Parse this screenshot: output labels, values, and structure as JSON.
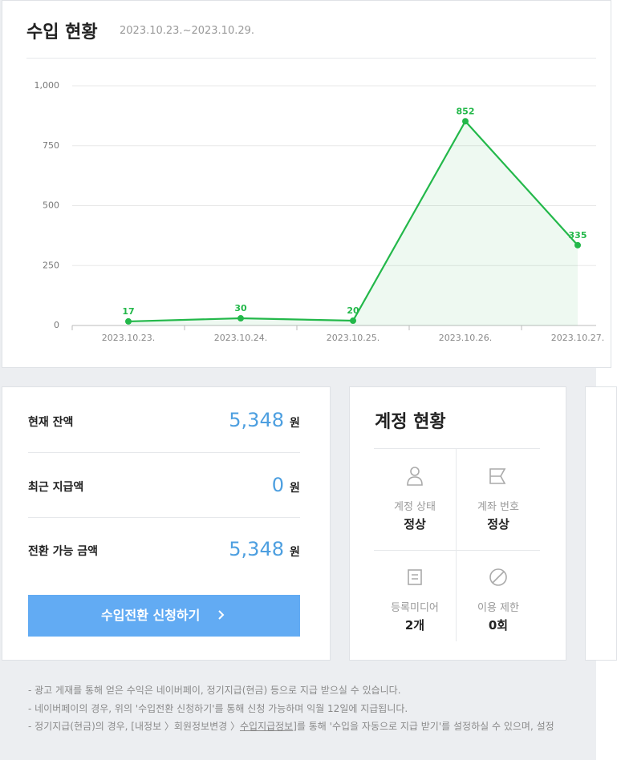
{
  "header": {
    "title": "수입 현황",
    "period": "2023.10.23.~2023.10.29."
  },
  "chart_data": {
    "type": "line",
    "categories": [
      "2023.10.23.",
      "2023.10.24.",
      "2023.10.25.",
      "2023.10.26.",
      "2023.10.27."
    ],
    "series": [
      {
        "name": "수입",
        "color": "#23b84a",
        "values": [
          17,
          30,
          20,
          852,
          335
        ]
      }
    ],
    "ylim": [
      0,
      1000
    ],
    "yticks": [
      0,
      250,
      500,
      750,
      {
        "value": 1000,
        "label": "1,000"
      }
    ],
    "grid": true
  },
  "balance": {
    "rows": [
      {
        "label": "현재 잔액",
        "value": "5,348",
        "unit": "원"
      },
      {
        "label": "최근 지급액",
        "value": "0",
        "unit": "원"
      },
      {
        "label": "전환 가능 금액",
        "value": "5,348",
        "unit": "원"
      }
    ],
    "button": "수입전환 신청하기"
  },
  "account": {
    "title": "계정 현황",
    "items": [
      {
        "label": "계정 상태",
        "value": "정상"
      },
      {
        "label": "계좌 번호",
        "value": "정상"
      },
      {
        "label": "등록미디어",
        "value": "2개"
      },
      {
        "label": "이용 제한",
        "value": "0회"
      }
    ]
  },
  "notes": [
    "- 광고 게재를 통해 얻은 수익은 네이버페이, 정기지급(현금) 등으로 지급 받으실 수 있습니다.",
    "- 네이버페이의 경우, 위의 '수입전환 신청하기'를 통해 신청 가능하며 익월 12일에 지급됩니다.",
    [
      "- 정기지급(현금)의 경우, [내정보 〉회원정보변경 〉",
      "수입지급정보",
      "]를 통해 '수입을 자동으로 지급 받기'를 설정하실 수 있으며, 설정"
    ]
  ]
}
